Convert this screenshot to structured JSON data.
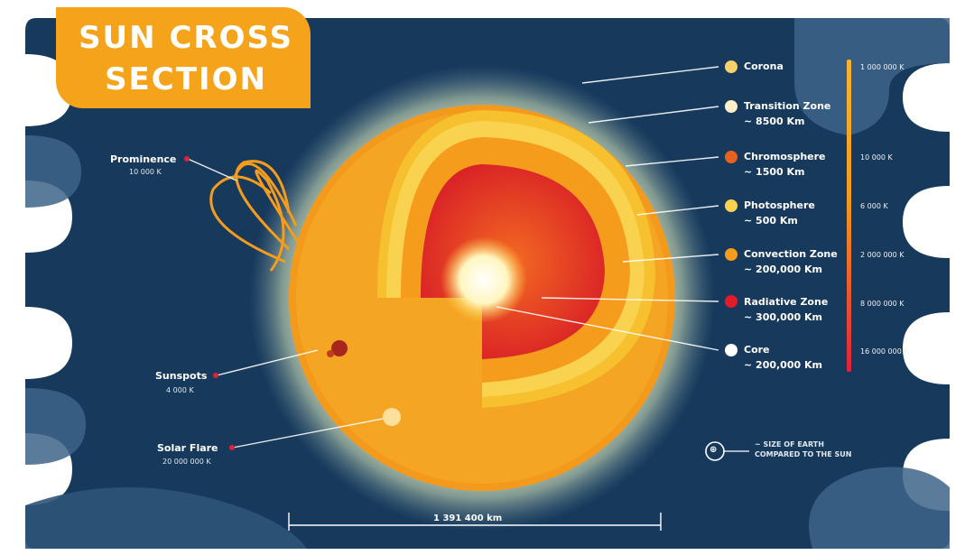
{
  "title": {
    "line1": "SUN CROSS",
    "line2": "SECTION"
  },
  "layers": [
    {
      "name": "Corona",
      "detail": "",
      "color": "#f7d26a"
    },
    {
      "name": "Transition Zone",
      "detail": "~ 8500 Km",
      "color": "#fbf0c8"
    },
    {
      "name": "Chromosphere",
      "detail": "~ 1500 Km",
      "color": "#e8621d"
    },
    {
      "name": "Photosphere",
      "detail": "~ 500 Km",
      "color": "#f9d24f"
    },
    {
      "name": "Convection Zone",
      "detail": "~ 200,000 Km",
      "color": "#f59c1c"
    },
    {
      "name": "Radiative Zone",
      "detail": "~ 300,000 Km",
      "color": "#e21b2a"
    },
    {
      "name": "Core",
      "detail": "~ 200,000 Km",
      "color": "#ffffff"
    }
  ],
  "features": [
    {
      "name": "Prominence",
      "temp": "10 000 K"
    },
    {
      "name": "Sunspots",
      "temp": "4 000 K"
    },
    {
      "name": "Solar Flare",
      "temp": "20 000 000 K"
    }
  ],
  "temperature_scale": [
    "1 000 000 K",
    "10 000 K",
    "6 000 K",
    "2 000 000 K",
    "8 000 000 K",
    "16 000 000 K"
  ],
  "earth_note": {
    "marker": "⊕",
    "line1": "~ SIZE OF EARTH",
    "line2": "COMPARED TO THE SUN"
  },
  "diameter": "1 391 400 km",
  "colors": {
    "background": "#173a5c",
    "wave": "#3e6488",
    "accent": "#f5a31a",
    "pointer": "#e0213a"
  }
}
